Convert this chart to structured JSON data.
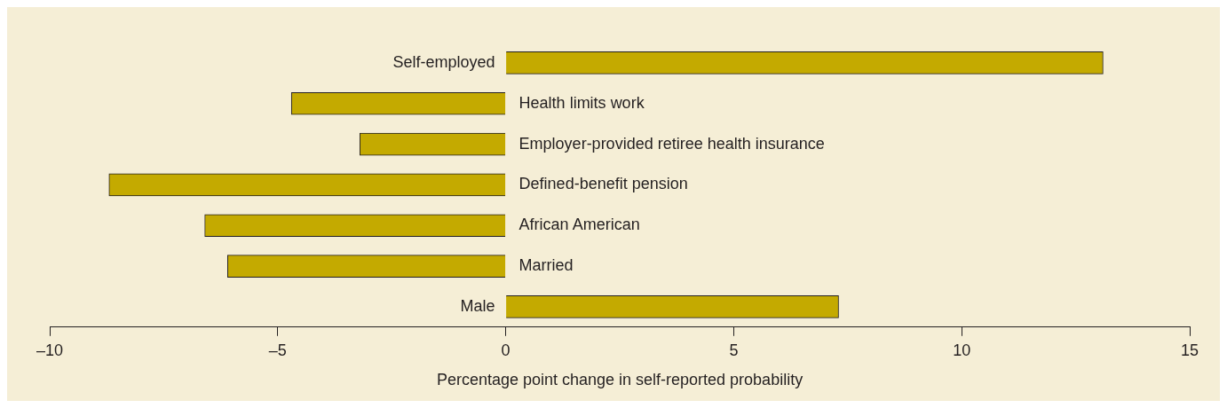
{
  "chart_data": {
    "type": "bar",
    "orientation": "horizontal",
    "xlabel": "Percentage point change in self-reported probability",
    "categories": [
      "Self-employed",
      "Health limits work",
      "Employer-provided retiree health insurance",
      "Defined-benefit pension",
      "African American",
      "Married",
      "Male"
    ],
    "values": [
      13.1,
      -4.7,
      -3.2,
      -8.7,
      -6.6,
      -6.1,
      7.3
    ],
    "color": "#c4aa00",
    "xlim": [
      -10,
      15
    ],
    "xticks": [
      {
        "value": -10,
        "label": "–10"
      },
      {
        "value": -5,
        "label": "–5"
      },
      0,
      5,
      10,
      15
    ],
    "grid": false,
    "legend": false
  }
}
